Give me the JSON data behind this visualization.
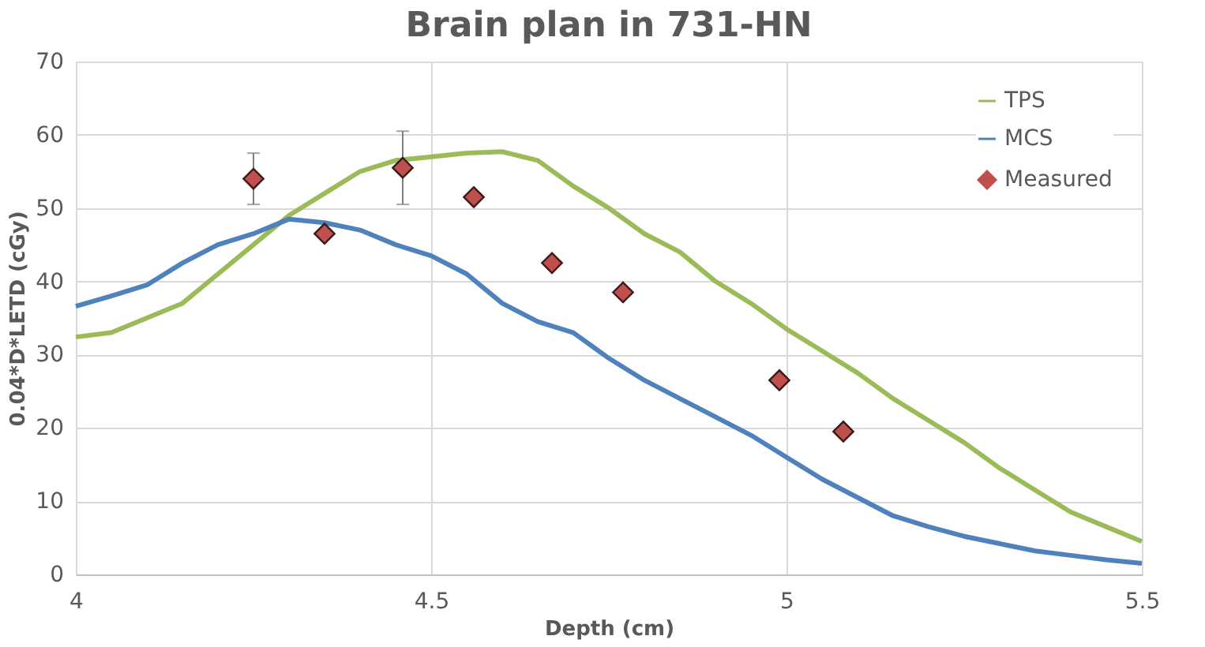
{
  "chart_data": {
    "type": "line",
    "title": "Brain plan in 731-HN",
    "xlabel": "Depth (cm)",
    "ylabel": "0.04*D*LETD (cGy)",
    "xlim": [
      4,
      5.5
    ],
    "xticks": [
      {
        "value": 4,
        "label": "4"
      },
      4.5,
      {
        "value": 5,
        "label": "5"
      },
      5.5
    ],
    "ylim": [
      0,
      70
    ],
    "yticks": [
      0,
      10,
      20,
      30,
      40,
      50,
      60,
      70
    ],
    "grid": true,
    "legend": "top right",
    "series": [
      {
        "name": "TPS",
        "line_style": "solid",
        "color": "#9bbb59",
        "x": [
          4.0,
          4.05,
          4.1,
          4.15,
          4.2,
          4.25,
          4.3,
          4.35,
          4.4,
          4.45,
          4.5,
          4.55,
          4.6,
          4.65,
          4.7,
          4.75,
          4.8,
          4.85,
          4.9,
          4.95,
          5.0,
          5.05,
          5.1,
          5.15,
          5.2,
          5.25,
          5.3,
          5.35,
          5.4,
          5.45,
          5.5
        ],
        "values": [
          32.4,
          33,
          35,
          37,
          41,
          45,
          49,
          52,
          55,
          56.5,
          57,
          57.5,
          57.7,
          56.5,
          53,
          50,
          46.5,
          44,
          40,
          37,
          33.5,
          30.5,
          27.5,
          24,
          21,
          18,
          14.5,
          11.5,
          8.5,
          6.5,
          4.5
        ]
      },
      {
        "name": "MCS",
        "line_style": "solid",
        "color": "#4f81bd",
        "x": [
          4.0,
          4.05,
          4.1,
          4.15,
          4.2,
          4.25,
          4.3,
          4.35,
          4.4,
          4.45,
          4.5,
          4.55,
          4.6,
          4.65,
          4.7,
          4.75,
          4.8,
          4.85,
          4.9,
          4.95,
          5.0,
          5.05,
          5.1,
          5.15,
          5.2,
          5.25,
          5.3,
          5.35,
          5.4,
          5.45,
          5.5
        ],
        "values": [
          36.6,
          38,
          39.5,
          42.5,
          45,
          46.5,
          48.5,
          48,
          47,
          45,
          43.5,
          41,
          37,
          34.5,
          33,
          29.5,
          26.5,
          24,
          21.5,
          19,
          16,
          13,
          10.5,
          8,
          6.5,
          5.2,
          4.2,
          3.2,
          2.6,
          2,
          1.5
        ]
      },
      {
        "name": "Measured",
        "type": "scatter",
        "marker": "diamond",
        "color": "#c0504d",
        "x": [
          4.25,
          4.35,
          4.46,
          4.56,
          4.67,
          4.77,
          4.99,
          5.08
        ],
        "values": [
          54,
          46.5,
          55.5,
          51.5,
          42.5,
          38.5,
          26.5,
          19.5
        ],
        "errors": [
          3.5,
          null,
          5,
          null,
          null,
          null,
          null,
          null
        ]
      }
    ]
  }
}
